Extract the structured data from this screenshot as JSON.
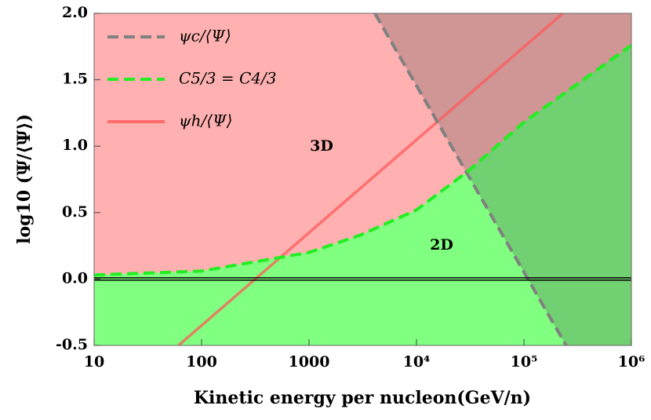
{
  "chart_data": {
    "type": "line",
    "xlabel": "Kinetic energy per nucleon(GeV/n)",
    "ylabel": "log10 (Ψ/⟨Ψ⟩)",
    "xscale": "log",
    "xlim": [
      10,
      1000000
    ],
    "ylim": [
      -0.5,
      2.0
    ],
    "xticks": [
      10,
      100,
      1000,
      {
        "value": 10000,
        "label": "10⁴"
      },
      {
        "value": 100000,
        "label": "10⁵"
      },
      {
        "value": 1000000,
        "label": "10⁶"
      }
    ],
    "yticks": [
      {
        "value": -0.5,
        "label": "-0.5"
      },
      {
        "value": 0,
        "label": "0.0"
      },
      {
        "value": 0.5,
        "label": "0.5"
      },
      {
        "value": 1,
        "label": "1.0"
      },
      {
        "value": 1.5,
        "label": "1.5"
      },
      {
        "value": 2,
        "label": "2.0"
      }
    ],
    "series": [
      {
        "name": "ψc/⟨Ψ⟩",
        "color": "#808080",
        "dash": true,
        "x": [
          4100,
          247000
        ],
        "values": [
          2.0,
          -0.5
        ]
      },
      {
        "name": "C5/3 = C4/3",
        "color": "#22ee22",
        "dash": true,
        "x": [
          10,
          100,
          1000,
          3000,
          10000,
          30000,
          100000,
          1000000
        ],
        "values": [
          0.03,
          0.06,
          0.2,
          0.33,
          0.52,
          0.81,
          1.18,
          1.76
        ]
      },
      {
        "name": "ψh/⟨Ψ⟩",
        "color": "#ff5a5a",
        "dash": false,
        "x": [
          61,
          230000
        ],
        "values": [
          -0.5,
          2.0
        ]
      }
    ],
    "annotations": [
      "3D",
      "2D"
    ]
  }
}
